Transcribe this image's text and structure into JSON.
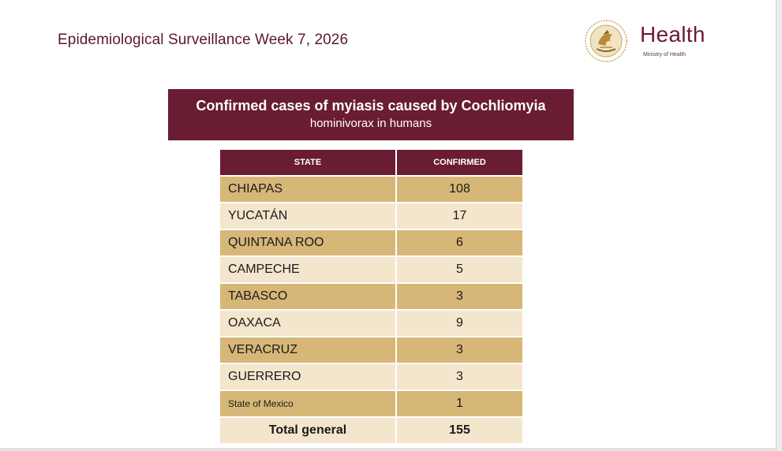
{
  "title": "Epidemiological Surveillance Week 7, 2026",
  "logo": {
    "brand": "Health",
    "subtitle": "Ministry of Health",
    "emblem_icon": "national-emblem-icon",
    "color": "#c9a75a"
  },
  "header": {
    "line1": "Confirmed cases of myiasis caused by Cochliomyia",
    "line2": "hominivorax in humans"
  },
  "table": {
    "columns": [
      "STATE",
      "CONFIRMED"
    ],
    "rows": [
      {
        "state": "CHIAPAS",
        "confirmed": "108"
      },
      {
        "state": "YUCATÁN",
        "confirmed": "17"
      },
      {
        "state": "QUINTANA ROO",
        "confirmed": "6"
      },
      {
        "state": "CAMPECHE",
        "confirmed": "5"
      },
      {
        "state": "TABASCO",
        "confirmed": "3"
      },
      {
        "state": "OAXACA",
        "confirmed": "9"
      },
      {
        "state": "VERACRUZ",
        "confirmed": "3"
      },
      {
        "state": "GUERRERO",
        "confirmed": "3"
      },
      {
        "state": "State of Mexico",
        "confirmed": "1"
      }
    ],
    "total_label": "Total general",
    "total_value": "155"
  },
  "colors": {
    "maroon": "#691c32",
    "gold_row": "#d7b777",
    "cream_row": "#f3e6cd"
  }
}
